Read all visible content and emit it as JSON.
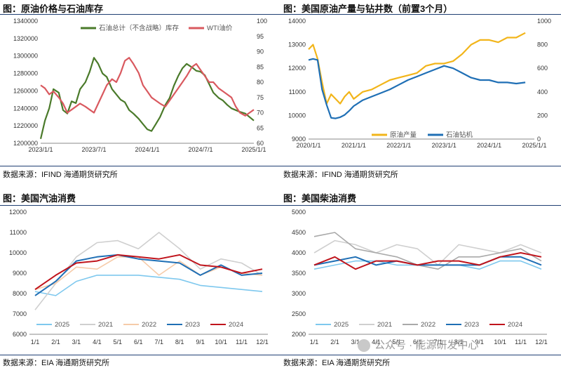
{
  "panels": [
    {
      "title": "图：原油价格与石油库存",
      "source": "数据来源：IFIND 海通期货研究所"
    },
    {
      "title": "图：美国原油产量与钻井数（前置3个月）",
      "source": "数据来源：IFIND 海通期货研究所"
    },
    {
      "title": "图：美国汽油消费",
      "source": "数据来源：EIA 海通期货研究所"
    },
    {
      "title": "图：美国柴油消费",
      "source": "数据来源：EIA 海通期货研究所"
    }
  ],
  "watermark": "公众号 · 能源研发中心",
  "colors": {
    "rule": "#1f3f73",
    "inventory": "#4a7a2a",
    "wti": "#d9595f",
    "production": "#f2b51a",
    "rigs": "#1f6fb5",
    "y2025": "#7ec8ee",
    "y2021": "#cfcfcf",
    "y2022_gas": "#f6cba9",
    "y2022_dsl": "#a9a9a9",
    "y2023": "#1f6fb5",
    "y2024": "#c0141c"
  },
  "chart_data": [
    {
      "type": "line",
      "title": "图：原油价格与石油库存",
      "x_ticks": [
        "2023/1/1",
        "2023/7/1",
        "2024/1/1",
        "2024/7/1",
        "2025/1/1"
      ],
      "x_range": [
        2023.0,
        2025.0
      ],
      "ylim_left": [
        1200000,
        1340000
      ],
      "y_ticks_left": [
        1200000,
        1220000,
        1240000,
        1260000,
        1280000,
        1300000,
        1320000,
        1340000
      ],
      "ylim_right": [
        60,
        100
      ],
      "y_ticks_right": [
        60,
        65,
        70,
        75,
        80,
        85,
        90,
        95,
        100
      ],
      "series": [
        {
          "name": "石油总计（不含战略）库存",
          "axis": "left",
          "color": "#4a7a2a",
          "x": [
            2023.0,
            2023.04,
            2023.08,
            2023.12,
            2023.17,
            2023.21,
            2023.25,
            2023.29,
            2023.33,
            2023.37,
            2023.42,
            2023.46,
            2023.5,
            2023.54,
            2023.58,
            2023.62,
            2023.67,
            2023.71,
            2023.75,
            2023.79,
            2023.83,
            2023.87,
            2023.92,
            2023.96,
            2024.0,
            2024.04,
            2024.08,
            2024.12,
            2024.17,
            2024.21,
            2024.25,
            2024.29,
            2024.33,
            2024.37,
            2024.42,
            2024.46,
            2024.5,
            2024.54,
            2024.58,
            2024.62,
            2024.67,
            2024.71,
            2024.75,
            2024.79,
            2024.83,
            2024.87,
            2024.92,
            2024.96,
            2025.0
          ],
          "y": [
            1205000,
            1226000,
            1240000,
            1262000,
            1258000,
            1238000,
            1234000,
            1248000,
            1246000,
            1262000,
            1270000,
            1282000,
            1298000,
            1291000,
            1280000,
            1276000,
            1262000,
            1256000,
            1250000,
            1247000,
            1238000,
            1234000,
            1228000,
            1222000,
            1216000,
            1214000,
            1222000,
            1230000,
            1244000,
            1252000,
            1266000,
            1277000,
            1286000,
            1291000,
            1287000,
            1283000,
            1282000,
            1278000,
            1268000,
            1258000,
            1252000,
            1249000,
            1244000,
            1240000,
            1238000,
            1236000,
            1234000,
            1230000,
            1226000
          ]
        },
        {
          "name": "WTI油价",
          "axis": "right",
          "color": "#d9595f",
          "x": [
            2023.0,
            2023.04,
            2023.08,
            2023.12,
            2023.17,
            2023.21,
            2023.25,
            2023.29,
            2023.33,
            2023.37,
            2023.42,
            2023.46,
            2023.5,
            2023.54,
            2023.58,
            2023.62,
            2023.67,
            2023.71,
            2023.75,
            2023.79,
            2023.83,
            2023.87,
            2023.92,
            2023.96,
            2024.0,
            2024.04,
            2024.08,
            2024.12,
            2024.17,
            2024.21,
            2024.25,
            2024.29,
            2024.33,
            2024.37,
            2024.42,
            2024.46,
            2024.5,
            2024.54,
            2024.58,
            2024.62,
            2024.67,
            2024.71,
            2024.75,
            2024.79,
            2024.83,
            2024.87,
            2024.92,
            2024.96,
            2025.0
          ],
          "y": [
            79,
            78,
            76,
            77,
            75,
            73,
            70,
            71,
            72,
            73,
            72,
            71,
            70,
            73,
            76,
            79,
            81,
            80,
            83,
            87,
            88,
            86,
            83,
            79,
            77,
            75,
            74,
            73,
            72,
            74,
            76,
            78,
            80,
            82,
            85,
            86,
            84,
            82,
            80,
            80,
            78,
            77,
            76,
            75,
            72,
            70,
            69,
            70,
            71
          ]
        }
      ],
      "legend": "top"
    },
    {
      "type": "line",
      "title": "图：美国原油产量与钻井数（前置3个月）",
      "x_ticks": [
        "2020/1/1",
        "2021/1/1",
        "2022/1/1",
        "2023/1/1",
        "2024/1/1",
        "2025/1/1"
      ],
      "x_range": [
        2020.0,
        2025.0
      ],
      "ylim_left": [
        9000,
        14000
      ],
      "y_ticks_left": [
        9000,
        10000,
        11000,
        12000,
        13000,
        14000
      ],
      "ylim_right": [
        0,
        1000
      ],
      "y_ticks_right": [
        0,
        200,
        400,
        600,
        800,
        1000
      ],
      "series": [
        {
          "name": "原油产量",
          "axis": "left",
          "color": "#f2b51a",
          "x": [
            2020.0,
            2020.1,
            2020.2,
            2020.3,
            2020.4,
            2020.5,
            2020.6,
            2020.7,
            2020.8,
            2020.9,
            2021.0,
            2021.2,
            2021.4,
            2021.6,
            2021.8,
            2022.0,
            2022.2,
            2022.4,
            2022.6,
            2022.8,
            2023.0,
            2023.2,
            2023.4,
            2023.6,
            2023.8,
            2024.0,
            2024.2,
            2024.4,
            2024.6,
            2024.8
          ],
          "y": [
            12800,
            13000,
            12400,
            11400,
            10500,
            10900,
            10700,
            10500,
            10800,
            11000,
            10700,
            11000,
            11100,
            11300,
            11500,
            11600,
            11700,
            11800,
            12100,
            12200,
            12200,
            12300,
            12600,
            13000,
            13200,
            13200,
            13100,
            13300,
            13300,
            13500
          ]
        },
        {
          "name": "石油钻机",
          "axis": "right",
          "color": "#1f6fb5",
          "x": [
            2020.0,
            2020.1,
            2020.2,
            2020.3,
            2020.4,
            2020.5,
            2020.6,
            2020.7,
            2020.8,
            2020.9,
            2021.0,
            2021.2,
            2021.4,
            2021.6,
            2021.8,
            2022.0,
            2022.2,
            2022.4,
            2022.6,
            2022.8,
            2023.0,
            2023.2,
            2023.4,
            2023.6,
            2023.8,
            2024.0,
            2024.2,
            2024.4,
            2024.6,
            2024.8
          ],
          "y": [
            670,
            680,
            670,
            420,
            290,
            180,
            175,
            185,
            205,
            240,
            280,
            330,
            360,
            390,
            420,
            460,
            500,
            530,
            560,
            590,
            620,
            600,
            560,
            520,
            500,
            500,
            480,
            480,
            470,
            480
          ]
        }
      ],
      "legend": "bottom"
    },
    {
      "type": "line",
      "title": "图：美国汽油消费",
      "categories": [
        "1/1",
        "2/1",
        "3/1",
        "4/1",
        "5/1",
        "6/1",
        "7/1",
        "8/1",
        "9/1",
        "10/1",
        "11/1",
        "12/1"
      ],
      "ylim": [
        6000,
        12000
      ],
      "y_ticks": [
        6000,
        7000,
        8000,
        9000,
        10000,
        11000,
        12000
      ],
      "series": [
        {
          "name": "2025",
          "color": "#7ec8ee",
          "values": [
            8100,
            7900,
            8600,
            8900,
            8900,
            8900,
            8800,
            8700,
            8400,
            8300,
            8200,
            8100
          ]
        },
        {
          "name": "2021",
          "color": "#cfcfcf",
          "values": [
            7200,
            8500,
            9800,
            10500,
            10600,
            10200,
            11000,
            10200,
            9200,
            9700,
            9500,
            8900
          ]
        },
        {
          "name": "2022",
          "color": "#f6cba9",
          "values": [
            8200,
            8500,
            9300,
            9200,
            9800,
            9800,
            8900,
            9600,
            8900,
            9300,
            9000,
            8900
          ]
        },
        {
          "name": "2023",
          "color": "#1f6fb5",
          "values": [
            7900,
            8600,
            9600,
            9800,
            9900,
            9700,
            9600,
            9500,
            8900,
            9400,
            8900,
            9000
          ]
        },
        {
          "name": "2024",
          "color": "#c0141c",
          "values": [
            8200,
            8900,
            9500,
            9600,
            9900,
            9800,
            9700,
            9900,
            9400,
            9300,
            9000,
            9200
          ]
        }
      ],
      "legend": "bottom"
    },
    {
      "type": "line",
      "title": "图：美国柴油消费",
      "categories": [
        "1/1",
        "2/1",
        "3/1",
        "4/1",
        "5/1",
        "6/1",
        "7/1",
        "8/1",
        "9/1",
        "10/1",
        "11/1",
        "12/1"
      ],
      "ylim": [
        2000,
        5000
      ],
      "y_ticks": [
        2000,
        2500,
        3000,
        3500,
        4000,
        4500,
        5000
      ],
      "series": [
        {
          "name": "2025",
          "color": "#7ec8ee",
          "values": [
            3600,
            3700,
            3800,
            3800,
            3700,
            3700,
            3700,
            3700,
            3600,
            3800,
            3800,
            3600
          ]
        },
        {
          "name": "2021",
          "color": "#cfcfcf",
          "values": [
            4000,
            4300,
            4200,
            4000,
            4200,
            4100,
            3700,
            4200,
            4100,
            4000,
            4200,
            4000
          ]
        },
        {
          "name": "2022",
          "color": "#a9a9a9",
          "values": [
            4400,
            4500,
            4100,
            4000,
            3900,
            3700,
            3600,
            3900,
            3900,
            4000,
            4100,
            3800
          ]
        },
        {
          "name": "2023",
          "color": "#1f6fb5",
          "values": [
            3700,
            3800,
            3900,
            3700,
            3800,
            3700,
            3700,
            3700,
            3700,
            3900,
            3900,
            3700
          ]
        },
        {
          "name": "2024",
          "color": "#c0141c",
          "values": [
            3700,
            3900,
            3600,
            3800,
            3800,
            3700,
            3800,
            3800,
            3700,
            3900,
            4000,
            3900
          ]
        }
      ],
      "legend": "bottom"
    }
  ]
}
